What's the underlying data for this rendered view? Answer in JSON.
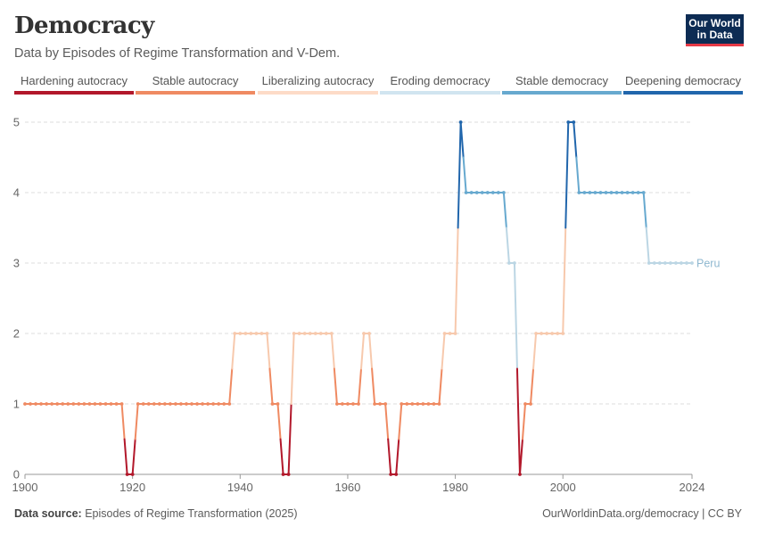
{
  "header": {
    "title": "Democracy",
    "subtitle": "Data by Episodes of Regime Transformation and V-Dem."
  },
  "logo": {
    "line1": "Our World",
    "line2": "in Data"
  },
  "legend": [
    {
      "label": "Hardening autocracy",
      "color": "#b2182b"
    },
    {
      "label": "Stable autocracy",
      "color": "#ef8a62"
    },
    {
      "label": "Liberalizing autocracy",
      "color": "#fddbc7"
    },
    {
      "label": "Eroding democracy",
      "color": "#d1e5f0"
    },
    {
      "label": "Stable democracy",
      "color": "#67a9cf"
    },
    {
      "label": "Deepening democracy",
      "color": "#2166ac"
    }
  ],
  "footer": {
    "source_label": "Data source:",
    "source_text": "Episodes of Regime Transformation (2025)",
    "credit": "OurWorldinData.org/democracy | CC BY"
  },
  "chart_data": {
    "type": "line",
    "series": [
      {
        "name": "Peru",
        "color": "#8fb8d0",
        "points": [
          [
            1900,
            1
          ],
          [
            1901,
            1
          ],
          [
            1902,
            1
          ],
          [
            1903,
            1
          ],
          [
            1904,
            1
          ],
          [
            1905,
            1
          ],
          [
            1906,
            1
          ],
          [
            1907,
            1
          ],
          [
            1908,
            1
          ],
          [
            1909,
            1
          ],
          [
            1910,
            1
          ],
          [
            1911,
            1
          ],
          [
            1912,
            1
          ],
          [
            1913,
            1
          ],
          [
            1914,
            1
          ],
          [
            1915,
            1
          ],
          [
            1916,
            1
          ],
          [
            1917,
            1
          ],
          [
            1918,
            1
          ],
          [
            1919,
            0
          ],
          [
            1920,
            0
          ],
          [
            1921,
            1
          ],
          [
            1922,
            1
          ],
          [
            1923,
            1
          ],
          [
            1924,
            1
          ],
          [
            1925,
            1
          ],
          [
            1926,
            1
          ],
          [
            1927,
            1
          ],
          [
            1928,
            1
          ],
          [
            1929,
            1
          ],
          [
            1930,
            1
          ],
          [
            1931,
            1
          ],
          [
            1932,
            1
          ],
          [
            1933,
            1
          ],
          [
            1934,
            1
          ],
          [
            1935,
            1
          ],
          [
            1936,
            1
          ],
          [
            1937,
            1
          ],
          [
            1938,
            1
          ],
          [
            1939,
            2
          ],
          [
            1940,
            2
          ],
          [
            1941,
            2
          ],
          [
            1942,
            2
          ],
          [
            1943,
            2
          ],
          [
            1944,
            2
          ],
          [
            1945,
            2
          ],
          [
            1946,
            1
          ],
          [
            1947,
            1
          ],
          [
            1948,
            0
          ],
          [
            1949,
            0
          ],
          [
            1950,
            2
          ],
          [
            1951,
            2
          ],
          [
            1952,
            2
          ],
          [
            1953,
            2
          ],
          [
            1954,
            2
          ],
          [
            1955,
            2
          ],
          [
            1956,
            2
          ],
          [
            1957,
            2
          ],
          [
            1958,
            1
          ],
          [
            1959,
            1
          ],
          [
            1960,
            1
          ],
          [
            1961,
            1
          ],
          [
            1962,
            1
          ],
          [
            1963,
            2
          ],
          [
            1964,
            2
          ],
          [
            1965,
            1
          ],
          [
            1966,
            1
          ],
          [
            1967,
            1
          ],
          [
            1968,
            0
          ],
          [
            1969,
            0
          ],
          [
            1970,
            1
          ],
          [
            1971,
            1
          ],
          [
            1972,
            1
          ],
          [
            1973,
            1
          ],
          [
            1974,
            1
          ],
          [
            1975,
            1
          ],
          [
            1976,
            1
          ],
          [
            1977,
            1
          ],
          [
            1978,
            2
          ],
          [
            1979,
            2
          ],
          [
            1980,
            2
          ],
          [
            1981,
            5
          ],
          [
            1982,
            4
          ],
          [
            1983,
            4
          ],
          [
            1984,
            4
          ],
          [
            1985,
            4
          ],
          [
            1986,
            4
          ],
          [
            1987,
            4
          ],
          [
            1988,
            4
          ],
          [
            1989,
            4
          ],
          [
            1990,
            3
          ],
          [
            1991,
            3
          ],
          [
            1992,
            0
          ],
          [
            1993,
            1
          ],
          [
            1994,
            1
          ],
          [
            1995,
            2
          ],
          [
            1996,
            2
          ],
          [
            1997,
            2
          ],
          [
            1998,
            2
          ],
          [
            1999,
            2
          ],
          [
            2000,
            2
          ],
          [
            2001,
            5
          ],
          [
            2002,
            5
          ],
          [
            2003,
            4
          ],
          [
            2004,
            4
          ],
          [
            2005,
            4
          ],
          [
            2006,
            4
          ],
          [
            2007,
            4
          ],
          [
            2008,
            4
          ],
          [
            2009,
            4
          ],
          [
            2010,
            4
          ],
          [
            2011,
            4
          ],
          [
            2012,
            4
          ],
          [
            2013,
            4
          ],
          [
            2014,
            4
          ],
          [
            2015,
            4
          ],
          [
            2016,
            3
          ],
          [
            2017,
            3
          ],
          [
            2018,
            3
          ],
          [
            2019,
            3
          ],
          [
            2020,
            3
          ],
          [
            2021,
            3
          ],
          [
            2022,
            3
          ],
          [
            2023,
            3
          ],
          [
            2024,
            3
          ]
        ]
      }
    ],
    "level_colors": [
      "#b2182b",
      "#ef8a62",
      "#f7c9ad",
      "#bcd6e4",
      "#67a9cf",
      "#2166ac"
    ],
    "x_ticks": [
      "1900",
      "1920",
      "1940",
      "1960",
      "1980",
      "2000",
      "2024"
    ],
    "x_tick_values": [
      1900,
      1920,
      1940,
      1960,
      1980,
      2000,
      2024
    ],
    "y_ticks": [
      "0",
      "1",
      "2",
      "3",
      "4",
      "5"
    ],
    "xlim": [
      1900,
      2024
    ],
    "ylim": [
      0,
      5
    ],
    "grid": true,
    "series_label": "Peru"
  }
}
